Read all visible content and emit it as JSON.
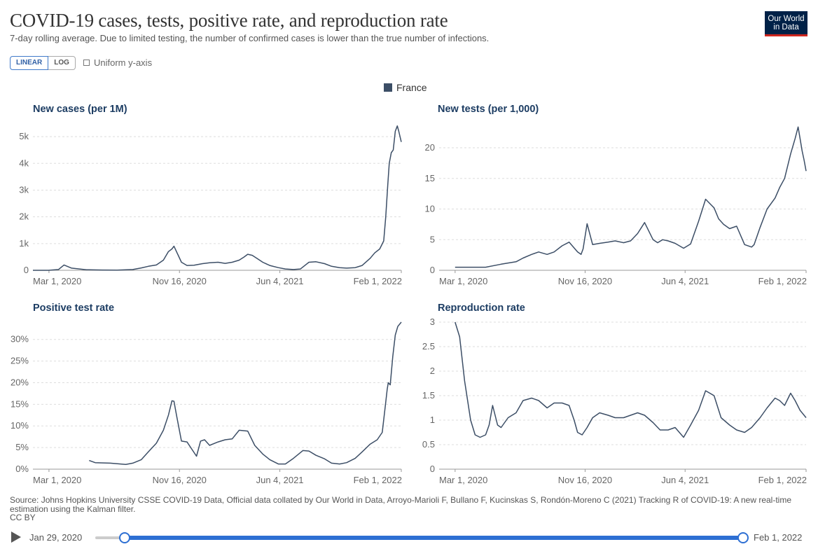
{
  "header": {
    "title": "COVID-19 cases, tests, positive rate, and reproduction rate",
    "subtitle": "7-day rolling average. Due to limited testing, the number of confirmed cases is lower than the true number of infections.",
    "logo_line1": "Our World",
    "logo_line2": "in Data"
  },
  "controls": {
    "linear_label": "LINEAR",
    "log_label": "LOG",
    "uniform_label": "Uniform y-axis"
  },
  "legend": {
    "label": "France",
    "color": "#3c4e66"
  },
  "colors": {
    "line": "#3c4e66",
    "grid": "#dddddd",
    "accent": "#2d6fd3",
    "title": "#1d3d63"
  },
  "chart_data": [
    {
      "type": "line",
      "title": "New cases (per 1M)",
      "series": [
        {
          "name": "France",
          "x": [
            "2020-01-29",
            "2020-02-29",
            "2020-03-20",
            "2020-03-31",
            "2020-04-15",
            "2020-05-15",
            "2020-06-15",
            "2020-07-15",
            "2020-08-15",
            "2020-09-01",
            "2020-09-15",
            "2020-10-01",
            "2020-10-15",
            "2020-10-25",
            "2020-11-01",
            "2020-11-05",
            "2020-11-10",
            "2020-11-20",
            "2020-12-01",
            "2020-12-15",
            "2021-01-01",
            "2021-01-15",
            "2021-02-01",
            "2021-02-15",
            "2021-03-01",
            "2021-03-15",
            "2021-03-25",
            "2021-04-01",
            "2021-04-10",
            "2021-04-20",
            "2021-05-01",
            "2021-05-15",
            "2021-06-01",
            "2021-06-15",
            "2021-07-01",
            "2021-07-15",
            "2021-07-25",
            "2021-08-01",
            "2021-08-15",
            "2021-09-01",
            "2021-09-15",
            "2021-10-01",
            "2021-10-15",
            "2021-11-01",
            "2021-11-15",
            "2021-12-01",
            "2021-12-10",
            "2021-12-20",
            "2021-12-28",
            "2022-01-01",
            "2022-01-05",
            "2022-01-08",
            "2022-01-12",
            "2022-01-16",
            "2022-01-20",
            "2022-01-24",
            "2022-01-27",
            "2022-02-01"
          ],
          "values": [
            0,
            0,
            30,
            200,
            80,
            20,
            10,
            5,
            30,
            90,
            150,
            200,
            380,
            700,
            800,
            900,
            700,
            300,
            180,
            190,
            250,
            280,
            300,
            260,
            300,
            380,
            500,
            600,
            560,
            440,
            300,
            180,
            100,
            50,
            30,
            50,
            200,
            300,
            320,
            250,
            150,
            100,
            80,
            100,
            180,
            450,
            650,
            800,
            1100,
            2000,
            3200,
            4000,
            4400,
            4500,
            5200,
            5400,
            5200,
            4800
          ]
        }
      ],
      "xticks": [
        "Mar 1, 2020",
        "Nov 16, 2020",
        "Jun 4, 2021",
        "Feb 1, 2022"
      ],
      "yticks": [
        "0",
        "1k",
        "2k",
        "3k",
        "4k",
        "5k"
      ],
      "ylim": [
        0,
        5500
      ]
    },
    {
      "type": "line",
      "title": "New tests (per 1,000)",
      "series": [
        {
          "name": "France",
          "x": [
            "2020-03-01",
            "2020-04-01",
            "2020-05-01",
            "2020-06-01",
            "2020-07-01",
            "2020-07-15",
            "2020-08-01",
            "2020-08-15",
            "2020-09-01",
            "2020-09-15",
            "2020-10-01",
            "2020-10-15",
            "2020-11-01",
            "2020-11-08",
            "2020-11-12",
            "2020-11-20",
            "2020-12-01",
            "2020-12-15",
            "2021-01-01",
            "2021-01-15",
            "2021-02-01",
            "2021-02-15",
            "2021-03-01",
            "2021-03-15",
            "2021-04-01",
            "2021-04-10",
            "2021-04-20",
            "2021-05-01",
            "2021-05-15",
            "2021-06-01",
            "2021-06-15",
            "2021-07-01",
            "2021-07-15",
            "2021-08-01",
            "2021-08-10",
            "2021-08-20",
            "2021-09-01",
            "2021-09-15",
            "2021-10-01",
            "2021-10-15",
            "2021-10-20",
            "2021-11-01",
            "2021-11-15",
            "2021-12-01",
            "2021-12-10",
            "2021-12-20",
            "2022-01-01",
            "2022-01-10",
            "2022-01-16",
            "2022-01-20",
            "2022-01-24",
            "2022-01-28",
            "2022-02-01"
          ],
          "values": [
            0.5,
            0.5,
            0.5,
            1.0,
            1.4,
            2.0,
            2.6,
            3.0,
            2.6,
            3.0,
            4.0,
            4.6,
            3.0,
            2.6,
            3.5,
            7.6,
            4.2,
            4.4,
            4.6,
            4.8,
            4.5,
            4.8,
            6.0,
            7.8,
            5.0,
            4.5,
            5.0,
            4.8,
            4.4,
            3.6,
            4.3,
            8.0,
            11.6,
            10.2,
            8.4,
            7.5,
            6.8,
            7.2,
            4.2,
            3.8,
            4.2,
            7.0,
            10.0,
            11.8,
            13.5,
            15.0,
            19.0,
            21.5,
            23.4,
            21.5,
            19.5,
            18.0,
            16.2
          ]
        }
      ],
      "xticks": [
        "Mar 1, 2020",
        "Nov 16, 2020",
        "Jun 4, 2021",
        "Feb 1, 2022"
      ],
      "yticks": [
        "0",
        "5",
        "10",
        "15",
        "20"
      ],
      "ylim": [
        0,
        24
      ]
    },
    {
      "type": "line",
      "title": "Positive test rate",
      "series": [
        {
          "name": "France",
          "x": [
            "2020-05-20",
            "2020-06-01",
            "2020-07-01",
            "2020-08-01",
            "2020-08-15",
            "2020-09-01",
            "2020-09-15",
            "2020-10-01",
            "2020-10-15",
            "2020-10-25",
            "2020-11-01",
            "2020-11-05",
            "2020-11-10",
            "2020-11-20",
            "2020-12-01",
            "2020-12-20",
            "2020-12-28",
            "2021-01-05",
            "2021-01-15",
            "2021-02-01",
            "2021-02-15",
            "2021-03-01",
            "2021-03-15",
            "2021-04-01",
            "2021-04-15",
            "2021-05-01",
            "2021-05-15",
            "2021-06-01",
            "2021-06-15",
            "2021-07-01",
            "2021-07-20",
            "2021-08-01",
            "2021-08-15",
            "2021-09-01",
            "2021-09-15",
            "2021-10-01",
            "2021-10-15",
            "2021-11-01",
            "2021-11-15",
            "2021-12-01",
            "2021-12-15",
            "2021-12-25",
            "2022-01-01",
            "2022-01-04",
            "2022-01-06",
            "2022-01-10",
            "2022-01-15",
            "2022-01-20",
            "2022-01-25",
            "2022-02-01"
          ],
          "values": [
            2.0,
            1.5,
            1.4,
            1.1,
            1.4,
            2.2,
            4.0,
            6.0,
            9.0,
            12.5,
            15.8,
            15.7,
            12.5,
            6.5,
            6.3,
            3.0,
            6.5,
            6.8,
            5.5,
            6.3,
            6.8,
            7.0,
            9.0,
            8.8,
            5.5,
            3.5,
            2.2,
            1.2,
            1.2,
            2.5,
            4.3,
            4.2,
            3.2,
            2.4,
            1.4,
            1.2,
            1.5,
            2.5,
            4.0,
            5.8,
            6.8,
            8.5,
            15.5,
            18.5,
            20.0,
            19.5,
            26.0,
            31.0,
            33.0,
            34.0
          ]
        }
      ],
      "xticks": [
        "Mar 1, 2020",
        "Nov 16, 2020",
        "Jun 4, 2021",
        "Feb 1, 2022"
      ],
      "yticks": [
        "0%",
        "5%",
        "10%",
        "15%",
        "20%",
        "25%",
        "30%"
      ],
      "ylim": [
        0,
        34
      ]
    },
    {
      "type": "line",
      "title": "Reproduction rate",
      "series": [
        {
          "name": "France",
          "x": [
            "2020-03-01",
            "2020-03-10",
            "2020-03-20",
            "2020-04-01",
            "2020-04-10",
            "2020-04-20",
            "2020-05-01",
            "2020-05-08",
            "2020-05-15",
            "2020-05-25",
            "2020-06-01",
            "2020-06-15",
            "2020-07-01",
            "2020-07-15",
            "2020-08-01",
            "2020-08-15",
            "2020-09-01",
            "2020-09-15",
            "2020-10-01",
            "2020-10-15",
            "2020-10-25",
            "2020-11-01",
            "2020-11-10",
            "2020-11-20",
            "2020-12-01",
            "2020-12-15",
            "2021-01-01",
            "2021-01-15",
            "2021-02-01",
            "2021-02-15",
            "2021-03-01",
            "2021-03-15",
            "2021-04-01",
            "2021-04-15",
            "2021-05-01",
            "2021-05-15",
            "2021-06-01",
            "2021-06-15",
            "2021-07-01",
            "2021-07-15",
            "2021-08-01",
            "2021-08-15",
            "2021-09-01",
            "2021-09-15",
            "2021-10-01",
            "2021-10-15",
            "2021-11-01",
            "2021-11-15",
            "2021-12-01",
            "2021-12-10",
            "2021-12-20",
            "2022-01-01",
            "2022-01-10",
            "2022-01-20",
            "2022-02-01"
          ],
          "values": [
            3.0,
            2.7,
            1.8,
            1.0,
            0.7,
            0.65,
            0.7,
            0.9,
            1.3,
            0.9,
            0.85,
            1.05,
            1.15,
            1.4,
            1.45,
            1.4,
            1.25,
            1.35,
            1.35,
            1.3,
            1.0,
            0.75,
            0.7,
            0.85,
            1.05,
            1.15,
            1.1,
            1.05,
            1.05,
            1.1,
            1.15,
            1.1,
            0.95,
            0.8,
            0.8,
            0.85,
            0.65,
            0.9,
            1.2,
            1.6,
            1.5,
            1.05,
            0.9,
            0.8,
            0.75,
            0.85,
            1.05,
            1.25,
            1.45,
            1.4,
            1.3,
            1.55,
            1.4,
            1.2,
            1.05
          ]
        }
      ],
      "xticks": [
        "Mar 1, 2020",
        "Nov 16, 2020",
        "Jun 4, 2021",
        "Feb 1, 2022"
      ],
      "yticks": [
        "0",
        "0.5",
        "1",
        "1.5",
        "2",
        "2.5",
        "3"
      ],
      "ylim": [
        0,
        3
      ]
    }
  ],
  "footer": {
    "source": "Source: Johns Hopkins University CSSE COVID-19 Data, Official data collated by Our World in Data, Arroyo-Marioli F, Bullano F, Kucinskas S, Rondón-Moreno C (2021) Tracking R of COVID-19: A new real-time estimation using the Kalman filter.",
    "license": "CC BY"
  },
  "timeline": {
    "start_label": "Jan 29, 2020",
    "end_label": "Feb 1, 2022"
  }
}
